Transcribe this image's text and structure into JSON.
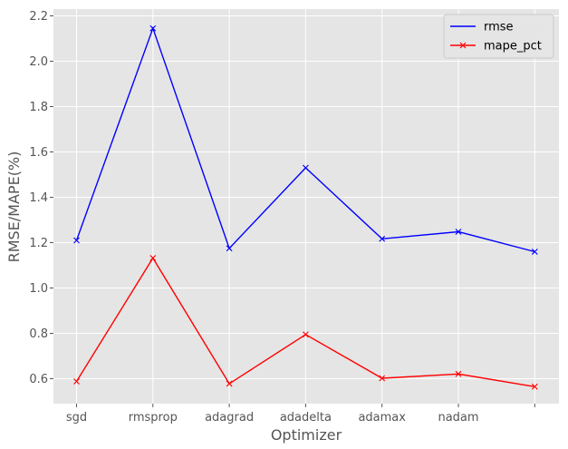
{
  "chart_data": {
    "type": "line",
    "categories": [
      "sgd",
      "rmsprop",
      "adagrad",
      "adadelta",
      "adamax",
      "nadam",
      ""
    ],
    "series": [
      {
        "name": "rmse",
        "color": "#0000ff",
        "marker": "x",
        "values": [
          1.21,
          2.145,
          1.175,
          1.53,
          1.217,
          1.248,
          1.16
        ]
      },
      {
        "name": "mape_pct",
        "color": "#ff0000",
        "marker": "x",
        "values": [
          0.588,
          1.132,
          0.578,
          0.795,
          0.602,
          0.621,
          0.565
        ]
      }
    ],
    "xlabel": "Optimizer",
    "ylabel": "RMSE/MAPE(%)",
    "ylim": [
      0.49,
      2.23
    ],
    "yticks": [
      "0.6",
      "0.8",
      "1.0",
      "1.2",
      "1.4",
      "1.6",
      "1.8",
      "2.0",
      "2.2"
    ],
    "grid": true,
    "legend": "top-right",
    "style": {
      "plot_background": "#e5e5e5",
      "grid_color": "#ffffff"
    }
  }
}
